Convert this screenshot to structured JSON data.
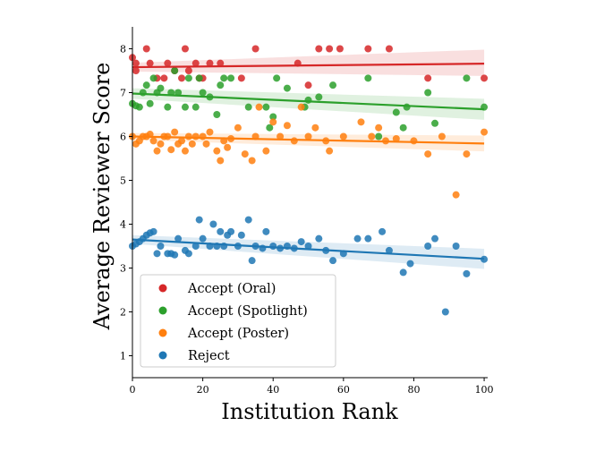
{
  "chart_data": {
    "type": "scatter",
    "title": "",
    "xlabel": "Institution Rank",
    "ylabel": "Average Reviewer Score",
    "xlim": [
      0,
      101
    ],
    "ylim": [
      0.5,
      8.5
    ],
    "xticks": [
      0,
      20,
      40,
      60,
      80,
      100
    ],
    "yticks": [
      1,
      2,
      3,
      4,
      5,
      6,
      7,
      8
    ],
    "grid": false,
    "legend_position": "lower-left",
    "series": [
      {
        "name": "Accept (Oral)",
        "color": "#d62728",
        "points": [
          [
            0,
            7.8
          ],
          [
            1,
            7.5
          ],
          [
            1,
            7.67
          ],
          [
            4,
            8.0
          ],
          [
            5,
            7.67
          ],
          [
            7,
            7.33
          ],
          [
            9,
            7.33
          ],
          [
            10,
            7.67
          ],
          [
            12,
            7.5
          ],
          [
            14,
            7.33
          ],
          [
            15,
            8.0
          ],
          [
            16,
            7.5
          ],
          [
            18,
            7.67
          ],
          [
            19,
            7.33
          ],
          [
            20,
            7.33
          ],
          [
            22,
            7.67
          ],
          [
            25,
            7.67
          ],
          [
            31,
            7.33
          ],
          [
            35,
            8.0
          ],
          [
            47,
            7.67
          ],
          [
            50,
            7.17
          ],
          [
            53,
            8.0
          ],
          [
            56,
            8.0
          ],
          [
            59,
            8.0
          ],
          [
            67,
            8.0
          ],
          [
            73,
            8.0
          ],
          [
            84,
            7.33
          ],
          [
            100,
            7.33
          ]
        ],
        "fit": {
          "x": [
            0,
            100
          ],
          "y": [
            7.58,
            7.66
          ],
          "ci_lower": [
            7.48,
            7.38
          ],
          "ci_upper": [
            7.68,
            7.98
          ]
        }
      },
      {
        "name": "Accept (Spotlight)",
        "color": "#2ca02c",
        "points": [
          [
            0,
            6.75
          ],
          [
            1,
            6.7
          ],
          [
            2,
            6.67
          ],
          [
            3,
            7.0
          ],
          [
            4,
            7.17
          ],
          [
            5,
            6.75
          ],
          [
            6,
            7.33
          ],
          [
            7,
            7.0
          ],
          [
            8,
            7.1
          ],
          [
            10,
            6.67
          ],
          [
            11,
            7.0
          ],
          [
            12,
            7.5
          ],
          [
            13,
            7.0
          ],
          [
            15,
            6.67
          ],
          [
            16,
            7.33
          ],
          [
            18,
            6.67
          ],
          [
            19,
            7.33
          ],
          [
            20,
            7.0
          ],
          [
            22,
            6.9
          ],
          [
            24,
            6.5
          ],
          [
            25,
            7.17
          ],
          [
            26,
            7.33
          ],
          [
            28,
            7.33
          ],
          [
            33,
            6.67
          ],
          [
            38,
            6.67
          ],
          [
            39,
            6.2
          ],
          [
            40,
            6.45
          ],
          [
            41,
            7.33
          ],
          [
            44,
            7.1
          ],
          [
            49,
            6.67
          ],
          [
            50,
            6.83
          ],
          [
            53,
            6.9
          ],
          [
            57,
            7.17
          ],
          [
            67,
            7.33
          ],
          [
            70,
            6.0
          ],
          [
            75,
            6.55
          ],
          [
            77,
            6.2
          ],
          [
            78,
            6.67
          ],
          [
            84,
            7.0
          ],
          [
            86,
            6.3
          ],
          [
            95,
            7.33
          ],
          [
            100,
            6.67
          ]
        ],
        "fit": {
          "x": [
            0,
            100
          ],
          "y": [
            6.98,
            6.62
          ],
          "ci_lower": [
            6.86,
            6.38
          ],
          "ci_upper": [
            7.1,
            6.86
          ]
        }
      },
      {
        "name": "Accept (Poster)",
        "color": "#ff7f0e",
        "points": [
          [
            0,
            6.0
          ],
          [
            1,
            5.83
          ],
          [
            2,
            5.9
          ],
          [
            3,
            6.0
          ],
          [
            4,
            6.0
          ],
          [
            5,
            6.05
          ],
          [
            6,
            5.9
          ],
          [
            7,
            5.67
          ],
          [
            8,
            5.83
          ],
          [
            9,
            6.0
          ],
          [
            10,
            6.0
          ],
          [
            11,
            5.7
          ],
          [
            12,
            6.1
          ],
          [
            13,
            5.83
          ],
          [
            14,
            5.9
          ],
          [
            15,
            5.67
          ],
          [
            16,
            6.0
          ],
          [
            17,
            5.83
          ],
          [
            18,
            6.0
          ],
          [
            20,
            6.0
          ],
          [
            21,
            5.83
          ],
          [
            22,
            6.1
          ],
          [
            24,
            5.67
          ],
          [
            25,
            5.45
          ],
          [
            26,
            5.9
          ],
          [
            27,
            5.75
          ],
          [
            28,
            5.95
          ],
          [
            30,
            6.2
          ],
          [
            32,
            5.6
          ],
          [
            34,
            5.45
          ],
          [
            35,
            6.0
          ],
          [
            36,
            6.67
          ],
          [
            38,
            5.67
          ],
          [
            40,
            6.33
          ],
          [
            42,
            6.0
          ],
          [
            44,
            6.25
          ],
          [
            46,
            5.9
          ],
          [
            48,
            6.67
          ],
          [
            50,
            6.0
          ],
          [
            52,
            6.2
          ],
          [
            55,
            5.9
          ],
          [
            56,
            5.67
          ],
          [
            60,
            6.0
          ],
          [
            65,
            6.33
          ],
          [
            68,
            6.0
          ],
          [
            70,
            6.2
          ],
          [
            72,
            5.9
          ],
          [
            75,
            5.95
          ],
          [
            80,
            5.9
          ],
          [
            84,
            5.6
          ],
          [
            88,
            6.0
          ],
          [
            92,
            4.67
          ],
          [
            95,
            5.6
          ],
          [
            100,
            6.1
          ]
        ],
        "fit": {
          "x": [
            0,
            100
          ],
          "y": [
            6.0,
            5.84
          ],
          "ci_lower": [
            5.92,
            5.66
          ],
          "ci_upper": [
            6.08,
            6.02
          ]
        }
      },
      {
        "name": "Reject",
        "color": "#1f77b4",
        "points": [
          [
            0,
            3.5
          ],
          [
            1,
            3.55
          ],
          [
            2,
            3.6
          ],
          [
            3,
            3.67
          ],
          [
            4,
            3.75
          ],
          [
            5,
            3.8
          ],
          [
            6,
            3.83
          ],
          [
            7,
            3.33
          ],
          [
            8,
            3.5
          ],
          [
            10,
            3.33
          ],
          [
            11,
            3.33
          ],
          [
            12,
            3.3
          ],
          [
            13,
            3.67
          ],
          [
            15,
            3.4
          ],
          [
            16,
            3.33
          ],
          [
            18,
            3.5
          ],
          [
            19,
            4.1
          ],
          [
            20,
            3.67
          ],
          [
            22,
            3.5
          ],
          [
            23,
            4.0
          ],
          [
            24,
            3.5
          ],
          [
            25,
            3.83
          ],
          [
            26,
            3.5
          ],
          [
            27,
            3.75
          ],
          [
            28,
            3.83
          ],
          [
            30,
            3.5
          ],
          [
            31,
            3.75
          ],
          [
            33,
            4.1
          ],
          [
            34,
            3.17
          ],
          [
            35,
            3.5
          ],
          [
            37,
            3.45
          ],
          [
            38,
            3.83
          ],
          [
            40,
            3.5
          ],
          [
            42,
            3.45
          ],
          [
            44,
            3.5
          ],
          [
            46,
            3.45
          ],
          [
            48,
            3.6
          ],
          [
            50,
            3.5
          ],
          [
            53,
            3.67
          ],
          [
            55,
            3.4
          ],
          [
            57,
            3.17
          ],
          [
            60,
            3.33
          ],
          [
            64,
            3.67
          ],
          [
            67,
            3.67
          ],
          [
            71,
            3.83
          ],
          [
            73,
            3.4
          ],
          [
            77,
            2.9
          ],
          [
            79,
            3.1
          ],
          [
            84,
            3.5
          ],
          [
            86,
            3.67
          ],
          [
            89,
            2.0
          ],
          [
            92,
            3.5
          ],
          [
            95,
            2.87
          ],
          [
            100,
            3.2
          ]
        ],
        "fit": {
          "x": [
            0,
            100
          ],
          "y": [
            3.65,
            3.21
          ],
          "ci_lower": [
            3.55,
            2.98
          ],
          "ci_upper": [
            3.75,
            3.44
          ]
        }
      }
    ]
  }
}
